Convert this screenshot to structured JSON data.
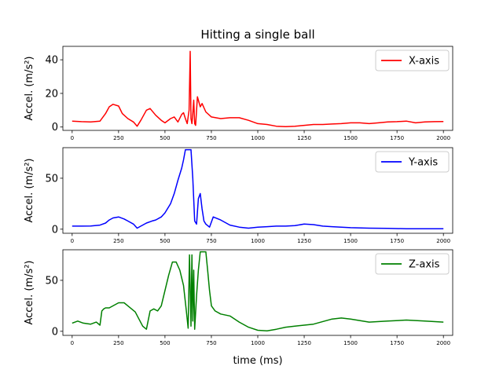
{
  "chart_data": {
    "type": "line",
    "title": "Hitting a single ball",
    "xlabel": "time (ms)",
    "xlim": [
      -50,
      2050
    ],
    "xticks": [
      0,
      250,
      500,
      750,
      1000,
      1250,
      1500,
      1750,
      2000
    ],
    "subplots": [
      {
        "ylabel": "Accel. (m/s²)",
        "ylim": [
          -2,
          48
        ],
        "yticks": [
          0,
          20,
          40
        ],
        "legend_position": "top-right",
        "series": [
          {
            "name": "X-axis",
            "color": "#ff0000",
            "x": [
              0,
              50,
              100,
              150,
              180,
              200,
              220,
              250,
              270,
              300,
              330,
              350,
              370,
              400,
              420,
              450,
              480,
              500,
              530,
              550,
              570,
              590,
              600,
              610,
              620,
              630,
              636,
              640,
              645,
              650,
              655,
              660,
              665,
              670,
              675,
              680,
              690,
              700,
              720,
              750,
              800,
              850,
              900,
              950,
              1000,
              1050,
              1100,
              1150,
              1200,
              1250,
              1300,
              1350,
              1400,
              1450,
              1500,
              1550,
              1600,
              1650,
              1700,
              1750,
              1800,
              1850,
              1900,
              1950,
              2000
            ],
            "y": [
              3.5,
              3.2,
              3.0,
              3.5,
              8.0,
              12.0,
              13.5,
              12.5,
              8.0,
              5.0,
              3.0,
              0.5,
              4.0,
              10.0,
              11.0,
              7.0,
              4.0,
              2.5,
              5.0,
              6.0,
              3.0,
              7.5,
              8.5,
              5.0,
              2.0,
              10.0,
              45.0,
              5.0,
              2.0,
              8.0,
              16.0,
              2.0,
              1.0,
              10.0,
              18.0,
              16.0,
              12.0,
              14.0,
              9.0,
              6.0,
              5.0,
              5.5,
              5.5,
              4.0,
              2.0,
              1.5,
              0.5,
              0.2,
              0.5,
              1.0,
              1.5,
              1.5,
              1.8,
              2.0,
              2.5,
              2.5,
              2.0,
              2.5,
              3.0,
              3.2,
              3.5,
              2.5,
              3.0,
              3.2,
              3.3
            ]
          }
        ]
      },
      {
        "ylabel": "Accel. (m/s²)",
        "ylim": [
          -4,
          80
        ],
        "yticks": [
          0,
          50
        ],
        "legend_position": "top-right",
        "series": [
          {
            "name": "Y-axis",
            "color": "#0000ff",
            "x": [
              0,
              50,
              100,
              150,
              180,
              200,
              220,
              250,
              280,
              300,
              330,
              350,
              370,
              400,
              430,
              450,
              480,
              500,
              530,
              550,
              570,
              590,
              600,
              610,
              620,
              630,
              640,
              650,
              660,
              670,
              680,
              690,
              700,
              710,
              720,
              740,
              760,
              800,
              850,
              900,
              950,
              1000,
              1050,
              1100,
              1150,
              1200,
              1250,
              1300,
              1350,
              1400,
              1450,
              1500,
              1600,
              1700,
              1800,
              1900,
              2000
            ],
            "y": [
              3.0,
              3.0,
              3.2,
              4.0,
              6.0,
              9.0,
              11.0,
              12.0,
              10.0,
              8.0,
              5.0,
              1.0,
              3.0,
              6.0,
              8.0,
              9.0,
              12.0,
              16.0,
              25.0,
              35.0,
              48.0,
              60.0,
              68.0,
              78.0,
              78.0,
              78.0,
              78.0,
              50.0,
              8.0,
              5.0,
              30.0,
              35.0,
              20.0,
              8.0,
              5.0,
              2.0,
              12.0,
              9.0,
              4.0,
              2.0,
              1.0,
              2.0,
              2.5,
              3.0,
              3.0,
              3.5,
              5.0,
              4.5,
              3.0,
              2.5,
              2.0,
              1.5,
              1.0,
              0.8,
              0.5,
              0.5,
              0.5
            ]
          }
        ]
      },
      {
        "ylabel": "Accel. (m/s²)",
        "ylim": [
          -4,
          80
        ],
        "yticks": [
          0,
          50
        ],
        "legend_position": "top-right",
        "series": [
          {
            "name": "Z-axis",
            "color": "#008000",
            "x": [
              0,
              30,
              60,
              100,
              130,
              150,
              160,
              170,
              180,
              200,
              230,
              250,
              280,
              300,
              320,
              340,
              360,
              380,
              400,
              420,
              440,
              460,
              480,
              500,
              520,
              540,
              560,
              580,
              600,
              615,
              625,
              632,
              640,
              645,
              650,
              655,
              660,
              670,
              680,
              690,
              700,
              710,
              720,
              730,
              740,
              750,
              770,
              800,
              850,
              900,
              950,
              1000,
              1050,
              1100,
              1150,
              1200,
              1250,
              1300,
              1400,
              1450,
              1500,
              1600,
              1700,
              1800,
              1900,
              2000
            ],
            "y": [
              8.0,
              10.0,
              8.0,
              7.0,
              9.0,
              6.0,
              20.0,
              22.0,
              23.0,
              23.0,
              26.0,
              28.0,
              28.0,
              25.0,
              22.0,
              19.0,
              12.0,
              5.0,
              2.0,
              20.0,
              22.0,
              20.0,
              25.0,
              40.0,
              55.0,
              68.0,
              68.0,
              60.0,
              45.0,
              20.0,
              3.0,
              75.0,
              5.0,
              75.0,
              10.0,
              60.0,
              2.0,
              35.0,
              60.0,
              78.0,
              78.0,
              78.0,
              78.0,
              60.0,
              40.0,
              25.0,
              20.0,
              17.0,
              15.0,
              9.0,
              4.0,
              1.0,
              0.5,
              2.0,
              4.0,
              5.0,
              6.0,
              7.0,
              12.0,
              13.0,
              12.0,
              9.0,
              10.0,
              11.0,
              10.0,
              9.0
            ]
          }
        ]
      }
    ]
  }
}
